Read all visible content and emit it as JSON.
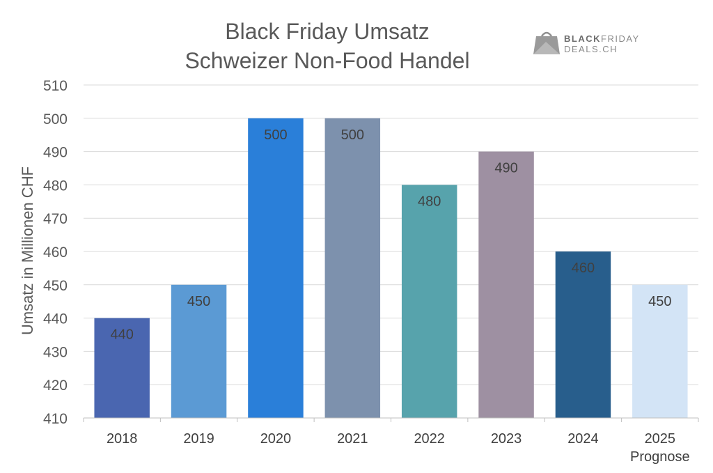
{
  "chart_data": {
    "type": "bar",
    "title_line1": "Black Friday Umsatz",
    "title_line2": "Schweizer Non-Food Handel",
    "ylabel": "Umsatz in Millionen CHF",
    "xlabel": "",
    "categories": [
      "2018",
      "2019",
      "2020",
      "2021",
      "2022",
      "2023",
      "2024",
      "2025"
    ],
    "category_sublabels": [
      "",
      "",
      "",
      "",
      "",
      "",
      "",
      "Prognose"
    ],
    "values": [
      440,
      450,
      500,
      500,
      480,
      490,
      460,
      450
    ],
    "data_labels": [
      "440",
      "450",
      "500",
      "500",
      "480",
      "490",
      "460",
      "450"
    ],
    "colors": [
      "#4a66b0",
      "#5b9ad4",
      "#2a7fd9",
      "#7d91ad",
      "#57a3ac",
      "#9e90a2",
      "#285e8c",
      "#d3e4f6"
    ],
    "ylim": [
      410,
      510
    ],
    "yticks": [
      410,
      420,
      430,
      440,
      450,
      460,
      470,
      480,
      490,
      500,
      510
    ],
    "grid": true,
    "legend": "none"
  },
  "logo": {
    "line1_bold": "BLACK",
    "line1_rest": "FRIDAY",
    "line2": "DEALS.CH"
  }
}
